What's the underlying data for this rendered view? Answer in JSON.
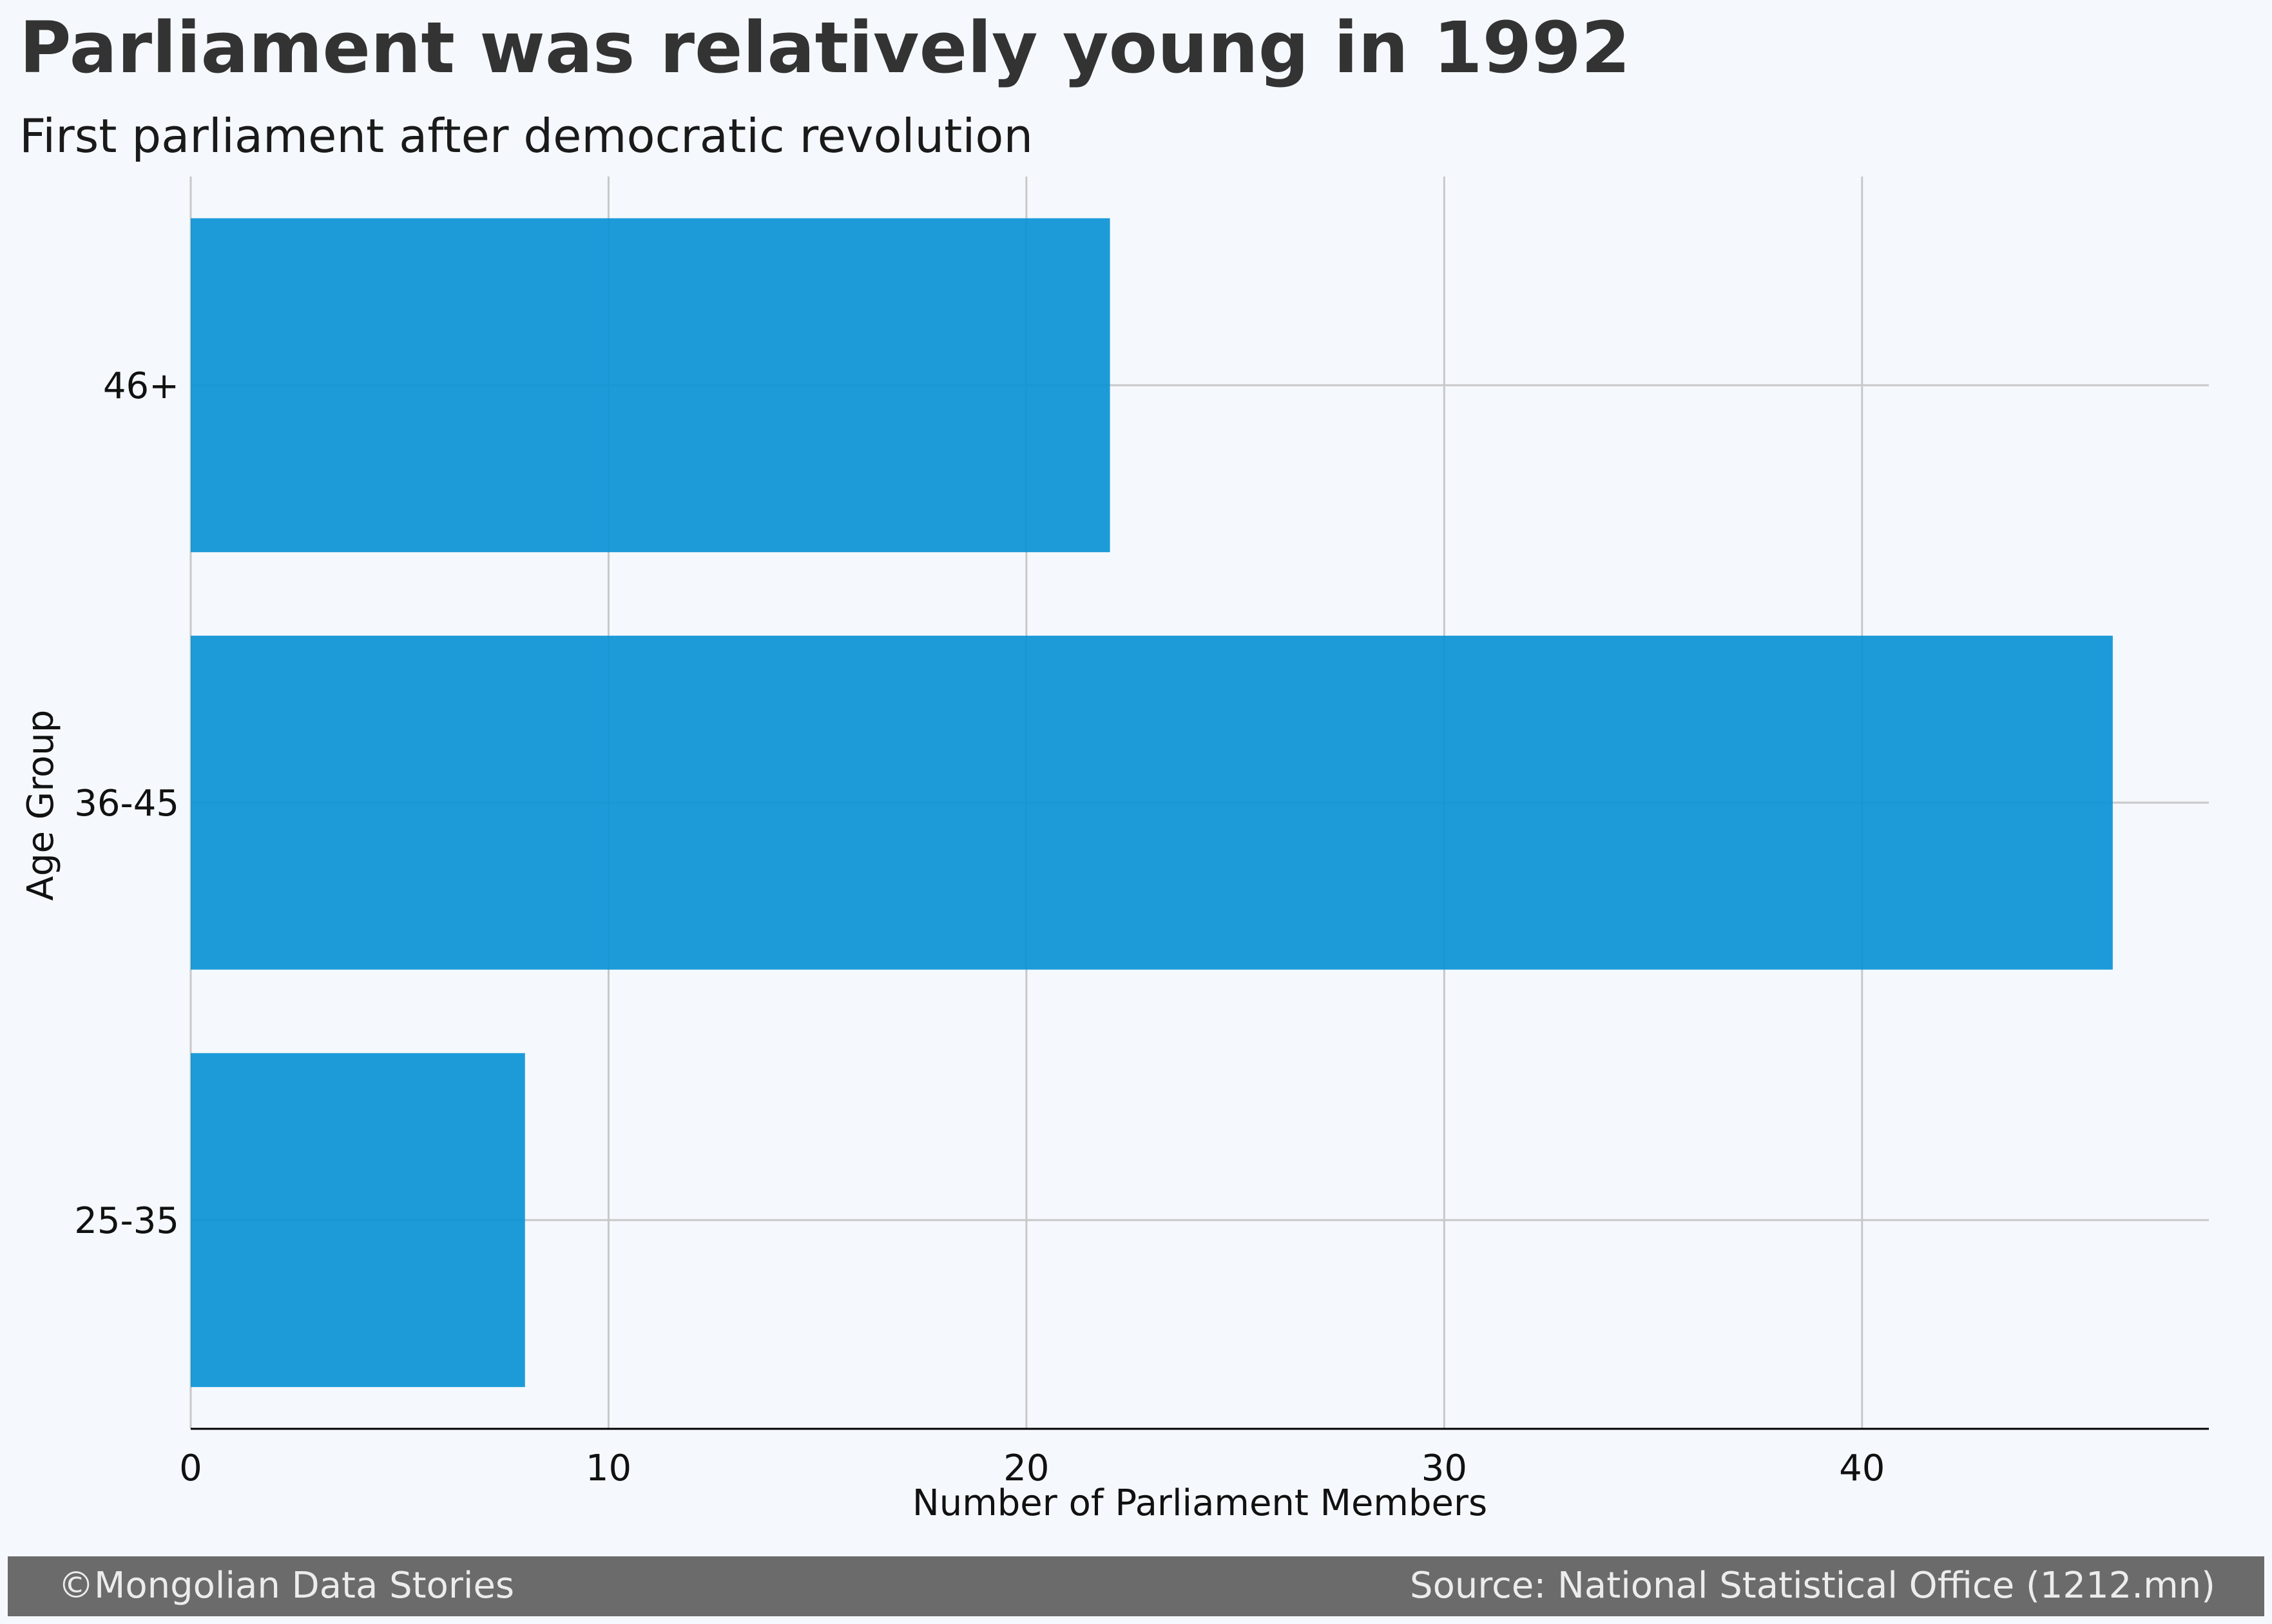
{
  "chart_data": {
    "type": "bar",
    "orientation": "horizontal",
    "title": "Parliament was relatively young in 1992",
    "subtitle": "First parliament after democratic revolution",
    "categories": [
      "25-35",
      "36-45",
      "46+"
    ],
    "values": [
      8,
      46,
      22
    ],
    "xlabel": "Number of Parliament Members",
    "ylabel": "Age Group",
    "xlim": [
      0,
      48.3
    ],
    "xticks": [
      "0",
      "10",
      "20",
      "30",
      "40"
    ],
    "grid": true,
    "bar_color": "#0a93d6"
  },
  "footer": {
    "credit": "©Mongolian Data Stories",
    "source": "Source: National Statistical Office (1212.mn)"
  }
}
